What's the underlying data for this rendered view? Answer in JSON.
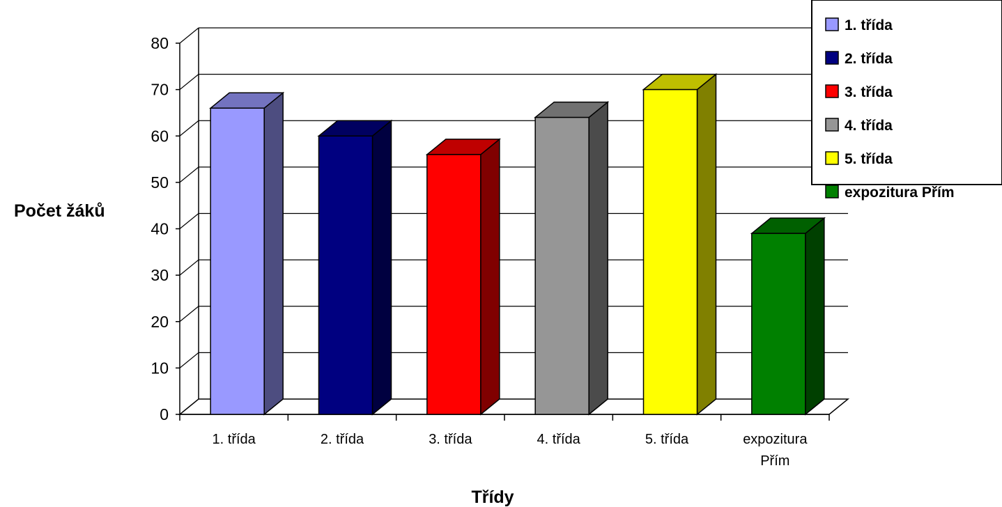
{
  "chart_data": {
    "type": "bar",
    "style": "3d-column",
    "categories": [
      "1. třída",
      "2. třída",
      "3. třída",
      "4. třída",
      "5. třída",
      "expozitura Přím"
    ],
    "category_tick_lines": [
      [
        "1. třída"
      ],
      [
        "2. třída"
      ],
      [
        "3. třída"
      ],
      [
        "4. třída"
      ],
      [
        "5. třída"
      ],
      [
        "expozitura",
        "Přím"
      ]
    ],
    "values": [
      66,
      60,
      56,
      64,
      70,
      39
    ],
    "colors": [
      "#9999ff",
      "#000080",
      "#ff0000",
      "#969696",
      "#ffff00",
      "#008000"
    ],
    "xlabel": "Třídy",
    "ylabel": "Počet žáků",
    "ylim": [
      0,
      80
    ],
    "yticks": [
      0,
      10,
      20,
      30,
      40,
      50,
      60,
      70,
      80
    ],
    "grid": true,
    "legend": {
      "position": "top-right",
      "entries": [
        "1. třída",
        "2. třída",
        "3. třída",
        "4. třída",
        "5. třída",
        "expozitura Přím"
      ]
    }
  }
}
